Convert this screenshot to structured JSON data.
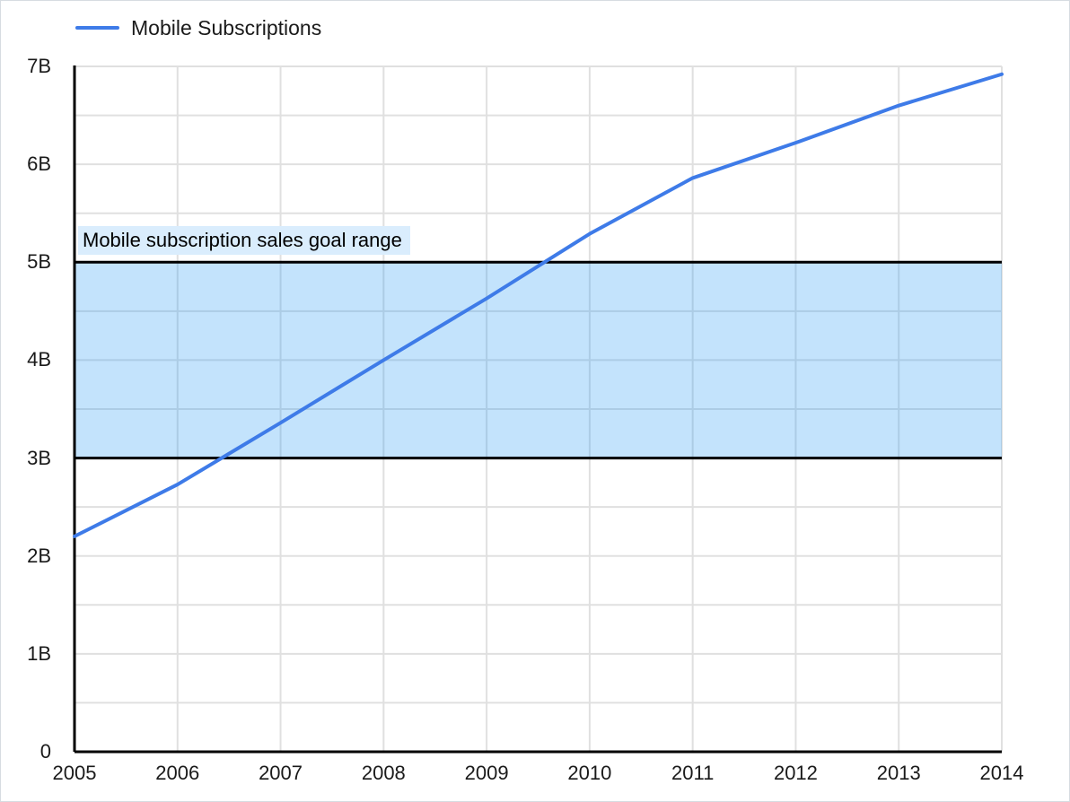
{
  "window": {
    "background": "#FFFFFF",
    "border_color": "#D7DCE1"
  },
  "chart_data": {
    "type": "line",
    "title": "",
    "legend": {
      "position": "top-left",
      "entries": [
        {
          "label": "Mobile Subscriptions",
          "color": "#3E7BE8"
        }
      ]
    },
    "x": [
      2005,
      2006,
      2007,
      2008,
      2009,
      2010,
      2011,
      2012,
      2013,
      2014
    ],
    "x_axis": {
      "ticks": [
        "2005",
        "2006",
        "2007",
        "2008",
        "2009",
        "2010",
        "2011",
        "2012",
        "2013",
        "2014"
      ]
    },
    "y_axis": {
      "ticks": [
        "0",
        "1B",
        "2B",
        "3B",
        "4B",
        "5B",
        "6B",
        "7B"
      ],
      "tick_values": [
        0,
        1,
        2,
        3,
        4,
        5,
        6,
        7
      ],
      "range": [
        0,
        7
      ],
      "minor_step": 0.5,
      "unit": "billions"
    },
    "series": [
      {
        "name": "Mobile Subscriptions",
        "values": [
          2.2,
          2.73,
          3.36,
          4.0,
          4.63,
          5.29,
          5.86,
          6.22,
          6.6,
          6.92
        ]
      }
    ],
    "annotation_band": {
      "label": "Mobile subscription sales goal range",
      "from": 3,
      "to": 5
    },
    "grid": true,
    "colors": {
      "series": "#3E7BE8",
      "grid": "#E0E0E0",
      "axis": "#000000",
      "band_fill": "rgba(33,150,243,0.27)",
      "band_border": "#000000",
      "band_label_bg": "#DAEDFD",
      "text": "#1A1A1A"
    }
  }
}
